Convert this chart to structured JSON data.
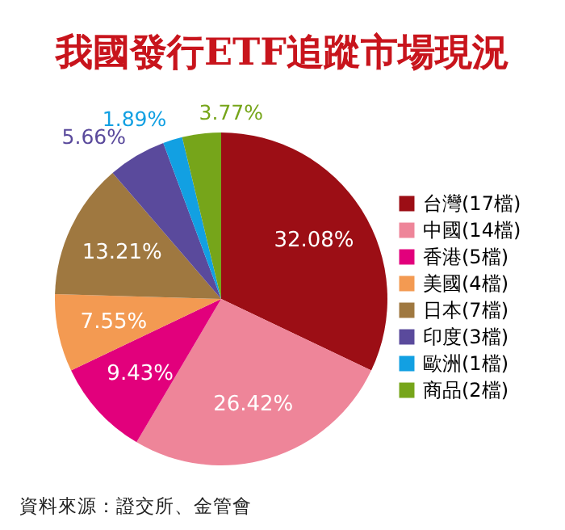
{
  "chart_data": {
    "type": "pie",
    "title": "我國發行ETF追蹤市場現況",
    "categories": [
      "台灣(17檔)",
      "中國(14檔)",
      "香港(5檔)",
      "美國(4檔)",
      "日本(7檔)",
      "印度(3檔)",
      "歐洲(1檔)",
      "商品(2檔)"
    ],
    "values": [
      32.08,
      26.42,
      9.43,
      7.55,
      13.21,
      5.66,
      1.89,
      3.77
    ],
    "value_labels": [
      "32.08%",
      "26.42%",
      "9.43%",
      "7.55%",
      "13.21%",
      "5.66%",
      "1.89%",
      "3.77%"
    ],
    "colors": [
      "#9c0e15",
      "#ee8599",
      "#e2007c",
      "#f39a52",
      "#9f7840",
      "#5a4a9c",
      "#12a0e2",
      "#76a51a"
    ],
    "legend": "right",
    "annotations": [
      "資料來源：證交所、金管會"
    ]
  }
}
